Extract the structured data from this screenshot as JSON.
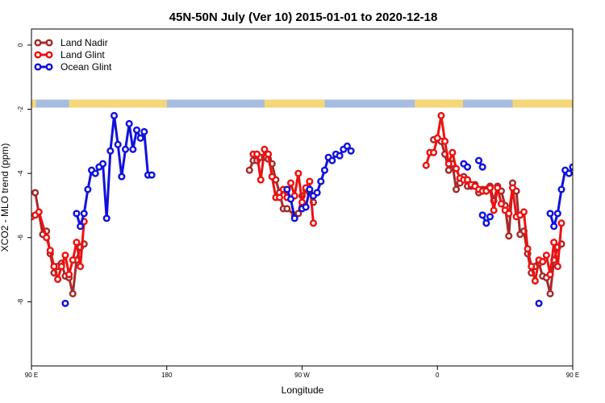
{
  "chart_data": {
    "type": "line",
    "title": "45N-50N July (Ver 10)   2015-01-01 to 2020-12-18",
    "xlabel": "Longitude",
    "ylabel": "XCO2 - MLO trend (ppm)",
    "xlim": [
      90,
      450
    ],
    "ylim": [
      -10,
      0.5
    ],
    "x_ticks": [
      {
        "value": 90,
        "label": "90 E"
      },
      {
        "value": 180,
        "label": "180"
      },
      {
        "value": 270,
        "label": "90 W"
      },
      {
        "value": 360,
        "label": "0"
      },
      {
        "value": 450,
        "label": "90 E"
      },
      {
        "value": 540,
        "label": "180"
      }
    ],
    "y_ticks": [
      {
        "value": 0,
        "label": "0"
      },
      {
        "value": -2,
        "label": "-2"
      },
      {
        "value": -4,
        "label": "-4"
      },
      {
        "value": -6,
        "label": "-6"
      },
      {
        "value": -8,
        "label": "-8"
      }
    ],
    "land_mask": {
      "y_range": [
        -1.95,
        -1.7
      ],
      "land_color": "#f5d77a",
      "ocean_color": "#a6bde0",
      "land_lon_ranges": [
        [
          90,
          93
        ],
        [
          115,
          180
        ],
        [
          245,
          285
        ],
        [
          345,
          377
        ],
        [
          410,
          500
        ],
        [
          525,
          532
        ]
      ]
    },
    "legend": {
      "position": "top-left"
    },
    "series": [
      {
        "name": "Land Nadir",
        "color": "#a52a2a",
        "segments": [
          [
            [
              92.5,
              -4.6
            ],
            [
              97.5,
              -5.9
            ],
            [
              100,
              -5.8
            ],
            [
              102.5,
              -6.5
            ],
            [
              105,
              -7.1
            ],
            [
              107.5,
              -6.9
            ],
            [
              110,
              -6.8
            ],
            [
              112.5,
              -7.2
            ],
            [
              115,
              -7.25
            ],
            [
              117.5,
              -7.75
            ],
            [
              120,
              -6.7
            ],
            [
              122.5,
              -6.3
            ],
            [
              125,
              -6.2
            ]
          ],
          [
            [
              235,
              -3.9
            ],
            [
              237.5,
              -3.6
            ],
            [
              240,
              -3.6
            ],
            [
              242.5,
              -3.5
            ],
            [
              245,
              -3.5
            ],
            [
              247.5,
              -3.55
            ],
            [
              250,
              -3.7
            ],
            [
              252.5,
              -4.2
            ],
            [
              255,
              -4.6
            ],
            [
              257.5,
              -5.1
            ],
            [
              260,
              -5.1
            ],
            [
              265,
              -5.3
            ],
            [
              267.5,
              -5.25
            ],
            [
              270,
              -4.7
            ],
            [
              272.5,
              -4.5
            ],
            [
              275,
              -4.6
            ],
            [
              277.5,
              -4.9
            ]
          ],
          [
            [
              357.5,
              -2.95
            ],
            [
              360,
              -2.9
            ],
            [
              362.5,
              -3.0
            ],
            [
              365,
              -3.4
            ],
            [
              367.5,
              -3.9
            ],
            [
              370,
              -3.7
            ],
            [
              372.5,
              -4.5
            ],
            [
              375,
              -4.3
            ],
            [
              377.5,
              -4.1
            ],
            [
              380,
              -4.4
            ],
            [
              382.5,
              -4.4
            ],
            [
              385,
              -4.35
            ],
            [
              387.5,
              -4.6
            ],
            [
              390,
              -4.5
            ],
            [
              392.5,
              -4.5
            ],
            [
              395,
              -4.4
            ],
            [
              397.5,
              -4.85
            ],
            [
              400,
              -4.4
            ],
            [
              402.5,
              -4.55
            ],
            [
              405,
              -5.0
            ],
            [
              407.5,
              -5.95
            ],
            [
              410,
              -4.3
            ],
            [
              412.5,
              -4.55
            ],
            [
              415,
              -5.9
            ],
            [
              417.5,
              -5.8
            ],
            [
              420,
              -6.5
            ],
            [
              422.5,
              -7.1
            ],
            [
              425,
              -6.9
            ],
            [
              427.5,
              -6.8
            ],
            [
              430,
              -7.2
            ],
            [
              432.5,
              -7.25
            ],
            [
              435,
              -7.75
            ],
            [
              437.5,
              -6.7
            ],
            [
              440,
              -6.3
            ],
            [
              442.5,
              -6.2
            ]
          ]
        ]
      },
      {
        "name": "Land Glint",
        "color": "#ee1111",
        "segments": [
          [
            [
              90,
              -5.35
            ],
            [
              92.5,
              -5.3
            ],
            [
              95,
              -5.2
            ],
            [
              100,
              -6.0
            ],
            [
              102.5,
              -6.4
            ],
            [
              105,
              -6.9
            ],
            [
              107.5,
              -7.3
            ],
            [
              110,
              -6.9
            ],
            [
              112.5,
              -6.55
            ],
            [
              115,
              -7.15
            ],
            [
              117.5,
              -6.7
            ],
            [
              120,
              -6.15
            ],
            [
              122.5,
              -6.9
            ],
            [
              125,
              -5.5
            ]
          ],
          [
            [
              237.5,
              -3.4
            ],
            [
              240,
              -3.4
            ],
            [
              242.5,
              -4.2
            ],
            [
              245,
              -3.25
            ],
            [
              247.5,
              -3.4
            ],
            [
              250,
              -4.1
            ],
            [
              252.5,
              -4.75
            ],
            [
              255,
              -4.75
            ],
            [
              257.5,
              -4.5
            ],
            [
              260,
              -4.75
            ],
            [
              262.5,
              -4.3
            ],
            [
              265,
              -4.7
            ],
            [
              267.5,
              -4.0
            ],
            [
              270,
              -4.9
            ],
            [
              272.5,
              -4.45
            ],
            [
              275,
              -4.25
            ],
            [
              277.5,
              -5.55
            ]
          ],
          [
            [
              352.5,
              -3.75
            ],
            [
              355,
              -3.35
            ],
            [
              357.5,
              -3.35
            ],
            [
              360,
              -2.9
            ],
            [
              362.5,
              -2.2
            ],
            [
              365,
              -3.0
            ],
            [
              367.5,
              -3.7
            ],
            [
              370,
              -3.35
            ],
            [
              372.5,
              -3.85
            ],
            [
              375,
              -4.15
            ],
            [
              377.5,
              -4.2
            ],
            [
              380,
              -4.2
            ],
            [
              382.5,
              -4.35
            ],
            [
              385,
              -4.4
            ],
            [
              387.5,
              -4.5
            ],
            [
              390,
              -4.55
            ],
            [
              392.5,
              -4.55
            ],
            [
              395,
              -4.45
            ],
            [
              397.5,
              -5.15
            ],
            [
              400,
              -4.45
            ],
            [
              402.5,
              -4.95
            ],
            [
              405,
              -5.15
            ],
            [
              407.5,
              -5.25
            ],
            [
              410,
              -4.45
            ],
            [
              412.5,
              -5.35
            ],
            [
              415,
              -5.3
            ],
            [
              417.5,
              -5.2
            ],
            [
              420,
              -6.35
            ],
            [
              422.5,
              -6.9
            ],
            [
              425,
              -7.35
            ],
            [
              427.5,
              -6.7
            ],
            [
              430,
              -6.75
            ],
            [
              432.5,
              -6.55
            ],
            [
              435,
              -7.15
            ],
            [
              437.5,
              -6.15
            ],
            [
              440,
              -6.9
            ],
            [
              442.5,
              -5.55
            ]
          ]
        ]
      },
      {
        "name": "Ocean Glint",
        "color": "#1111dd",
        "segments": [
          [
            [
              112.5,
              -8.05
            ]
          ],
          [
            [
              120,
              -5.25
            ],
            [
              122.5,
              -5.65
            ],
            [
              125,
              -5.25
            ],
            [
              127.5,
              -4.5
            ],
            [
              130,
              -3.9
            ],
            [
              132.5,
              -4.0
            ],
            [
              135,
              -3.8
            ],
            [
              137.5,
              -3.7
            ],
            [
              140,
              -5.4
            ],
            [
              142.5,
              -3.3
            ],
            [
              145,
              -2.2
            ],
            [
              147.5,
              -3.1
            ],
            [
              150,
              -4.1
            ],
            [
              152.5,
              -3.25
            ],
            [
              155,
              -2.45
            ],
            [
              157.5,
              -3.25
            ],
            [
              160,
              -2.65
            ],
            [
              162.5,
              -2.9
            ],
            [
              165,
              -2.7
            ],
            [
              167.5,
              -4.05
            ],
            [
              170,
              -4.05
            ]
          ],
          [
            [
              260,
              -4.5
            ],
            [
              262.5,
              -4.8
            ],
            [
              265,
              -5.4
            ]
          ],
          [
            [
              270,
              -5.1
            ],
            [
              272.5,
              -5.05
            ],
            [
              275,
              -4.5
            ],
            [
              277.5,
              -4.7
            ],
            [
              280,
              -4.6
            ],
            [
              282.5,
              -4.25
            ],
            [
              285,
              -3.9
            ],
            [
              287.5,
              -3.5
            ],
            [
              290,
              -3.6
            ],
            [
              292.5,
              -3.4
            ],
            [
              295,
              -3.45
            ],
            [
              297.5,
              -3.25
            ],
            [
              300,
              -3.15
            ],
            [
              302.5,
              -3.3
            ]
          ],
          [
            [
              377.5,
              -3.7
            ],
            [
              380,
              -3.8
            ]
          ],
          [
            [
              387.5,
              -3.6
            ],
            [
              390,
              -3.8
            ]
          ],
          [
            [
              390,
              -5.3
            ],
            [
              392.5,
              -5.55
            ],
            [
              395,
              -5.35
            ]
          ],
          [
            [
              427.5,
              -8.05
            ]
          ],
          [
            [
              435,
              -5.25
            ],
            [
              437.5,
              -5.65
            ],
            [
              440,
              -5.25
            ],
            [
              442.5,
              -4.5
            ],
            [
              445,
              -3.9
            ],
            [
              447.5,
              -4.0
            ],
            [
              450,
              -3.8
            ],
            [
              452.5,
              -3.7
            ],
            [
              455,
              -5.4
            ]
          ]
        ]
      }
    ]
  }
}
